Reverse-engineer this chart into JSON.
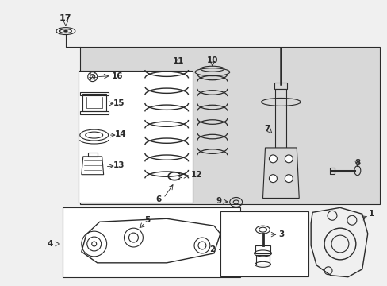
{
  "bg_color": "#f0f0f0",
  "white": "#ffffff",
  "line_color": "#2a2a2a",
  "shade_color": "#d8d8d8",
  "figsize": [
    4.89,
    3.6
  ],
  "dpi": 100
}
